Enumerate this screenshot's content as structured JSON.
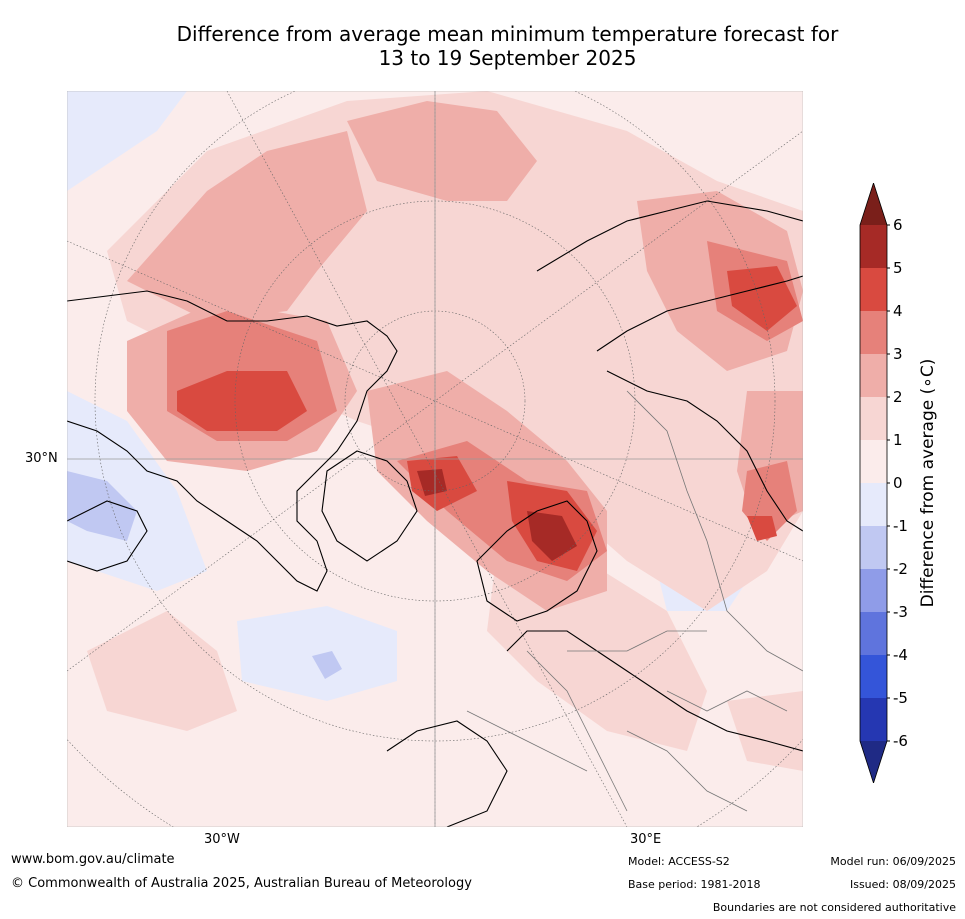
{
  "title_line1": "Difference from average mean minimum temperature forecast for",
  "title_line2": "13 to 19 September 2025",
  "map_labels": {
    "lat_30n": "30°N",
    "lon_30w": "30°W",
    "lon_30e": "30°E"
  },
  "colorbar": {
    "label": "Difference from average (∘C)",
    "ticks": [
      "6",
      "5",
      "4",
      "3",
      "2",
      "1",
      "0",
      "-1",
      "-2",
      "-3",
      "-4",
      "-5",
      "-6"
    ],
    "colors_top_to_bottom": [
      "#a62a26",
      "#d94a40",
      "#e6817a",
      "#efaea9",
      "#f7d6d3",
      "#fbeceb",
      "#e6eafb",
      "#c0c8f2",
      "#8f9ce8",
      "#5f74dd",
      "#3455d9",
      "#2537b2"
    ],
    "over_color": "#7a1f1a",
    "under_color": "#1f2a85"
  },
  "footer": {
    "url": "www.bom.gov.au/climate",
    "copyright": "© Commonwealth of Australia 2025, Australian Bureau of Meteorology",
    "model": "Model: ACCESS-S2",
    "base_period": "Base period: 1981-2018",
    "model_run": "Model run: 06/09/2025",
    "issued": "Issued: 08/09/2025",
    "disclaimer": "Boundaries are not considered authoritative"
  }
}
